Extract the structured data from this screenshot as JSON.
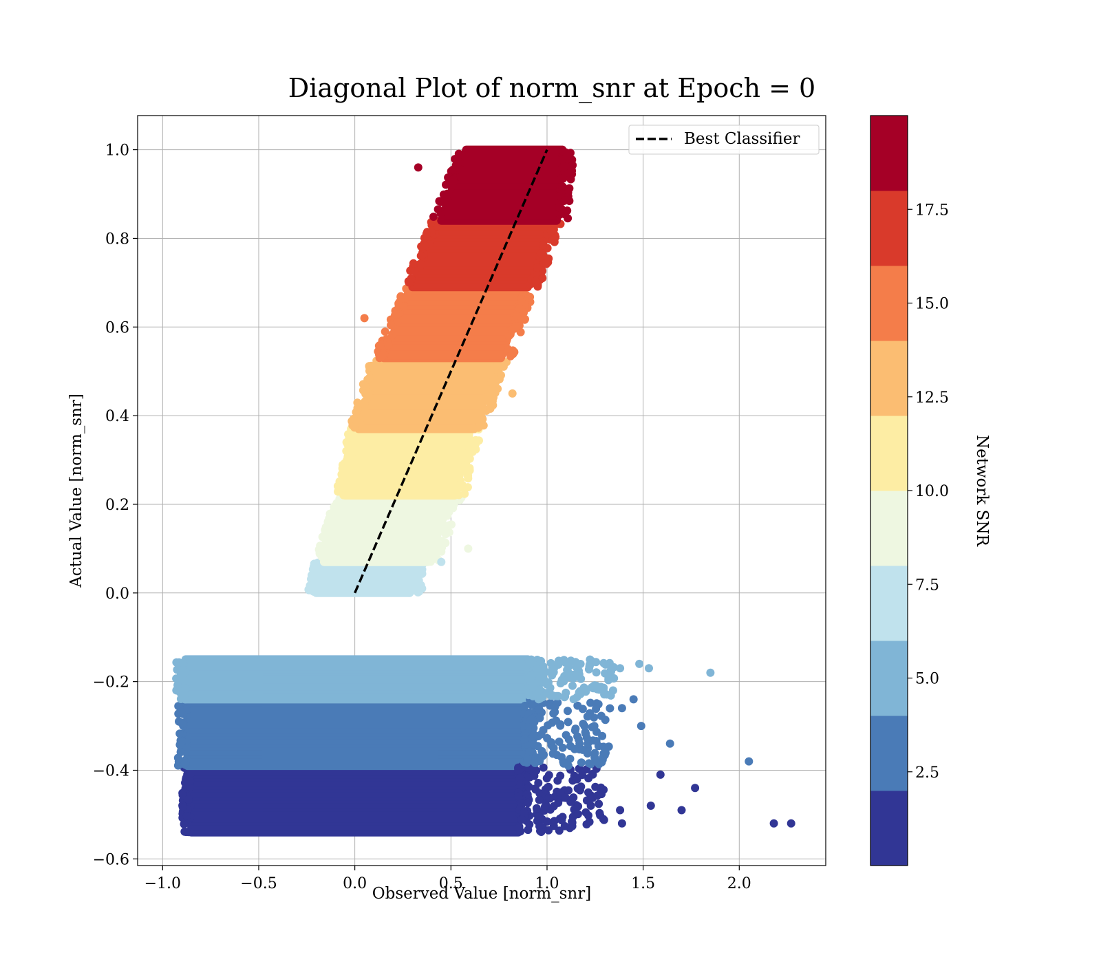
{
  "chart_data": {
    "type": "scatter",
    "title": "Diagonal Plot of norm_snr at Epoch = 0",
    "xlabel": "Observed Value [norm_snr]",
    "ylabel": "Actual Value [norm_snr]",
    "xlim": [
      -1.13,
      2.45
    ],
    "ylim": [
      -0.615,
      1.077
    ],
    "xticks": [
      -1.0,
      -0.5,
      0.0,
      0.5,
      1.0,
      1.5,
      2.0
    ],
    "yticks": [
      -0.6,
      -0.4,
      -0.2,
      0.0,
      0.2,
      0.4,
      0.6,
      0.8,
      1.0
    ],
    "grid": true,
    "legend": {
      "location": "top-right",
      "entries": [
        "Best Classifier"
      ]
    },
    "best_classifier": {
      "name": "Best Classifier",
      "style": "dashed",
      "color": "#000000",
      "x": [
        0.0,
        1.0
      ],
      "y": [
        0.0,
        1.0
      ]
    },
    "colorbar": {
      "label": "Network SNR",
      "range": [
        0,
        20
      ],
      "tick_values": [
        2.5,
        5.0,
        7.5,
        10.0,
        12.5,
        15.0,
        17.5
      ],
      "tick_labels": [
        "2.5",
        "5.0",
        "7.5",
        "10.0",
        "12.5",
        "15.0",
        "17.5"
      ],
      "colors": [
        "#313695",
        "#4a7bb7",
        "#80b5d6",
        "#c0e2ed",
        "#eef7e1",
        "#fdeda4",
        "#fbbd72",
        "#f47d4a",
        "#d93a2b",
        "#a50026"
      ]
    },
    "series": [
      {
        "snr_range": [
          0,
          2
        ],
        "color": "#313695",
        "y_range": [
          -0.54,
          -0.39
        ],
        "x_ranges": [
          [
            -0.85,
            0.85
          ]
        ]
      },
      {
        "snr_range": [
          2,
          4
        ],
        "color": "#4a7bb7",
        "y_range": [
          -0.39,
          -0.24
        ],
        "x_ranges": [
          [
            -0.87,
            0.88
          ]
        ]
      },
      {
        "snr_range": [
          4,
          6
        ],
        "color": "#80b5d6",
        "y_range": [
          -0.24,
          -0.15
        ],
        "x_ranges": [
          [
            -0.88,
            0.9
          ]
        ]
      },
      {
        "snr_range": [
          6,
          8
        ],
        "color": "#c0e2ed",
        "y_range": [
          0.0,
          0.07
        ],
        "x_ranges": [
          [
            -0.2,
            0.28
          ],
          [
            -0.16,
            0.3
          ]
        ]
      },
      {
        "snr_range": [
          8,
          10
        ],
        "color": "#eef7e1",
        "y_range": [
          0.07,
          0.22
        ],
        "x_ranges": [
          [
            -0.16,
            0.38
          ],
          [
            -0.05,
            0.5
          ]
        ]
      },
      {
        "snr_range": [
          10,
          12
        ],
        "color": "#fdeda4",
        "y_range": [
          0.22,
          0.37
        ],
        "x_ranges": [
          [
            -0.05,
            0.52
          ],
          [
            0.02,
            0.6
          ]
        ]
      },
      {
        "snr_range": [
          12,
          14
        ],
        "color": "#fbbd72",
        "y_range": [
          0.37,
          0.53
        ],
        "x_ranges": [
          [
            0.02,
            0.62
          ],
          [
            0.13,
            0.74
          ]
        ]
      },
      {
        "snr_range": [
          14,
          16
        ],
        "color": "#f47d4a",
        "y_range": [
          0.53,
          0.69
        ],
        "x_ranges": [
          [
            0.15,
            0.76
          ],
          [
            0.3,
            0.88
          ]
        ]
      },
      {
        "snr_range": [
          16,
          18
        ],
        "color": "#d93a2b",
        "y_range": [
          0.69,
          0.84
        ],
        "x_ranges": [
          [
            0.3,
            0.9
          ],
          [
            0.45,
            1.02
          ]
        ]
      },
      {
        "snr_range": [
          18,
          20
        ],
        "color": "#a50026",
        "y_range": [
          0.84,
          1.0
        ],
        "x_ranges": [
          [
            0.45,
            1.05
          ],
          [
            0.58,
            1.08
          ]
        ]
      }
    ],
    "outliers": [
      {
        "x": 2.27,
        "y": -0.52,
        "color": "#313695"
      },
      {
        "x": 2.18,
        "y": -0.52,
        "color": "#313695"
      },
      {
        "x": 2.05,
        "y": -0.38,
        "color": "#4a7bb7"
      },
      {
        "x": 1.85,
        "y": -0.18,
        "color": "#80b5d6"
      },
      {
        "x": 1.77,
        "y": -0.44,
        "color": "#313695"
      },
      {
        "x": 1.7,
        "y": -0.49,
        "color": "#313695"
      },
      {
        "x": 1.64,
        "y": -0.34,
        "color": "#4a7bb7"
      },
      {
        "x": 1.59,
        "y": -0.41,
        "color": "#313695"
      },
      {
        "x": 1.54,
        "y": -0.48,
        "color": "#313695"
      },
      {
        "x": 1.53,
        "y": -0.17,
        "color": "#80b5d6"
      },
      {
        "x": 1.49,
        "y": -0.3,
        "color": "#4a7bb7"
      },
      {
        "x": 1.48,
        "y": -0.16,
        "color": "#80b5d6"
      },
      {
        "x": 1.45,
        "y": -0.24,
        "color": "#4a7bb7"
      },
      {
        "x": 1.39,
        "y": -0.52,
        "color": "#313695"
      },
      {
        "x": 1.38,
        "y": -0.49,
        "color": "#313695"
      },
      {
        "x": 1.38,
        "y": -0.17,
        "color": "#80b5d6"
      },
      {
        "x": 1.39,
        "y": -0.26,
        "color": "#4a7bb7"
      },
      {
        "x": 0.33,
        "y": 0.96,
        "color": "#a50026"
      },
      {
        "x": 0.05,
        "y": 0.62,
        "color": "#f47d4a"
      },
      {
        "x": 0.82,
        "y": 0.45,
        "color": "#fbbd72"
      },
      {
        "x": 0.59,
        "y": 0.1,
        "color": "#eef7e1"
      },
      {
        "x": 0.45,
        "y": 0.07,
        "color": "#c0e2ed"
      },
      {
        "x": 0.35,
        "y": 0.01,
        "color": "#c0e2ed"
      }
    ]
  }
}
